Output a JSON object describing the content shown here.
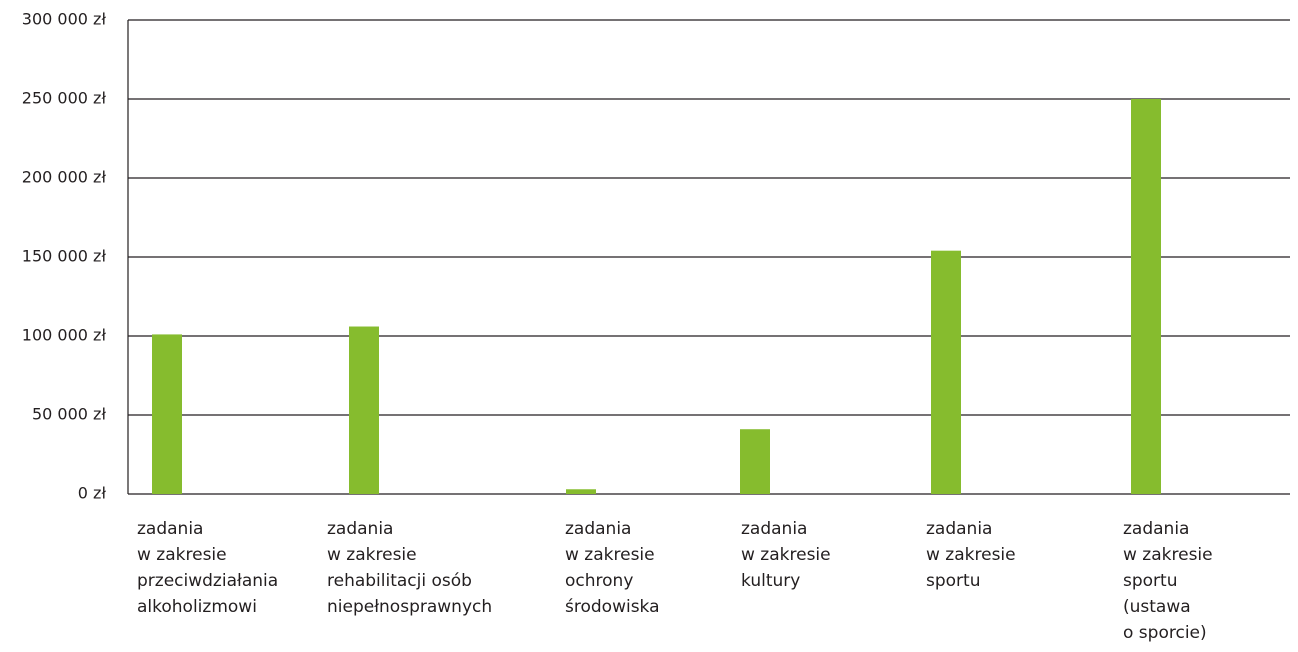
{
  "chart_data": {
    "type": "bar",
    "categories": [
      "zadania\nw zakresie\nprzeciwdziałania\nalkoholizmowi",
      "zadania\nw zakresie\nrehabilitacji osób\nniepełnosprawnych",
      "zadania\nw zakresie\nochrony\nśrodowiska",
      "zadania\nw zakresie\nkultury",
      "zadania\nw zakresie\nsportu",
      "zadania\nw zakresie\nsportu\n(ustawa\no sporcie)"
    ],
    "values": [
      101000,
      106000,
      3000,
      41000,
      154000,
      250000
    ],
    "color": "#86bc2e",
    "ylim": [
      0,
      300000
    ],
    "yticks": [
      {
        "value": 0,
        "label": "0 zł"
      },
      {
        "value": 50000,
        "label": "50 000 zł"
      },
      {
        "value": 100000,
        "label": "100 000 zł"
      },
      {
        "value": 150000,
        "label": "150 000 zł"
      },
      {
        "value": 200000,
        "label": "200 000 zł"
      },
      {
        "value": 250000,
        "label": "250 000 zł"
      },
      {
        "value": 300000,
        "label": "300 000 zł"
      }
    ],
    "grid": true
  }
}
